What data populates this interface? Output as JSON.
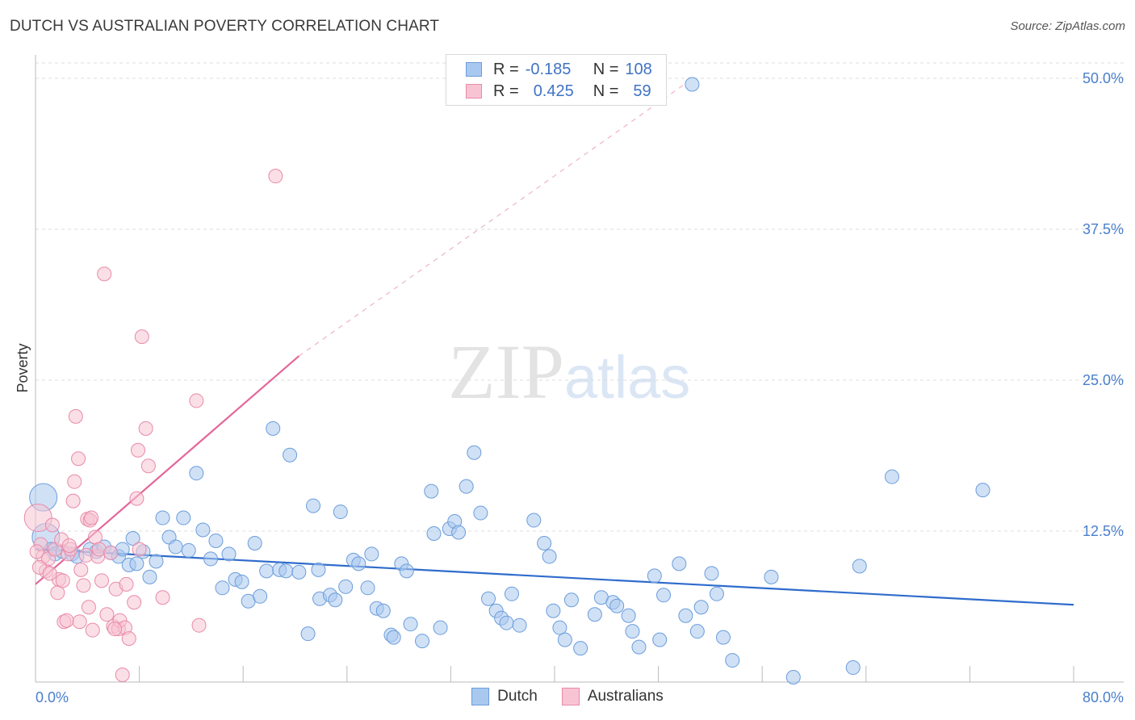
{
  "title": "DUTCH VS AUSTRALIAN POVERTY CORRELATION CHART",
  "source": "Source: ZipAtlas.com",
  "watermark": {
    "zip": "ZIP",
    "atlas": "atlas"
  },
  "legend": {
    "rows": [
      {
        "r_label": "R =",
        "r_value": "-0.185",
        "n_label": "N =",
        "n_value": "108",
        "color": "#a9c8ef",
        "border": "#6b9ddb"
      },
      {
        "r_label": "R =",
        "r_value": "0.425",
        "n_label": "N =",
        "n_value": "59",
        "color": "#f8c4d4",
        "border": "#e88aa8"
      }
    ]
  },
  "bottom_legend": {
    "dutch": "Dutch",
    "australians": "Australians"
  },
  "chart_data": {
    "type": "scatter",
    "title": "DUTCH VS AUSTRALIAN POVERTY CORRELATION CHART",
    "xlabel": "",
    "ylabel": "Poverty",
    "xlim": [
      0,
      80
    ],
    "ylim": [
      0,
      50
    ],
    "x_tick_labels": [
      "0.0%",
      "80.0%"
    ],
    "y_ticks": [
      12.5,
      25.0,
      37.5,
      50.0
    ],
    "y_tick_labels": [
      "12.5%",
      "25.0%",
      "37.5%",
      "50.0%"
    ],
    "grid": true,
    "legend_position": "top-center",
    "series": [
      {
        "name": "Dutch",
        "color": "#6b9ddb",
        "fill": "#a9c8ef",
        "trend": {
          "x": [
            0,
            80
          ],
          "y": [
            11.0,
            6.4
          ]
        },
        "points": [
          [
            0.6,
            15.3
          ],
          [
            0.8,
            12.0
          ],
          [
            1.2,
            11.0
          ],
          [
            1.5,
            10.6
          ],
          [
            2.1,
            10.8
          ],
          [
            2.8,
            10.6
          ],
          [
            3.2,
            10.4
          ],
          [
            4.2,
            11.0
          ],
          [
            4.7,
            10.8
          ],
          [
            5.3,
            11.2
          ],
          [
            5.8,
            10.7
          ],
          [
            6.4,
            10.4
          ],
          [
            6.7,
            11.0
          ],
          [
            7.2,
            9.7
          ],
          [
            7.5,
            11.9
          ],
          [
            7.8,
            9.8
          ],
          [
            8.3,
            10.8
          ],
          [
            8.8,
            8.7
          ],
          [
            9.3,
            10.0
          ],
          [
            9.8,
            13.6
          ],
          [
            10.3,
            12.0
          ],
          [
            10.8,
            11.2
          ],
          [
            11.4,
            13.6
          ],
          [
            11.8,
            10.9
          ],
          [
            12.4,
            17.3
          ],
          [
            12.9,
            12.6
          ],
          [
            13.5,
            10.2
          ],
          [
            13.9,
            11.7
          ],
          [
            14.4,
            7.8
          ],
          [
            14.9,
            10.6
          ],
          [
            15.4,
            8.5
          ],
          [
            15.9,
            8.3
          ],
          [
            16.4,
            6.7
          ],
          [
            16.9,
            11.5
          ],
          [
            17.3,
            7.1
          ],
          [
            17.8,
            9.2
          ],
          [
            18.3,
            21.0
          ],
          [
            18.8,
            9.3
          ],
          [
            19.3,
            9.2
          ],
          [
            19.6,
            18.8
          ],
          [
            20.3,
            9.1
          ],
          [
            21.0,
            4.0
          ],
          [
            21.4,
            14.6
          ],
          [
            21.8,
            9.3
          ],
          [
            21.9,
            6.9
          ],
          [
            22.7,
            7.2
          ],
          [
            23.1,
            6.8
          ],
          [
            23.5,
            14.1
          ],
          [
            23.9,
            7.9
          ],
          [
            24.5,
            10.1
          ],
          [
            24.9,
            9.8
          ],
          [
            25.6,
            7.8
          ],
          [
            25.9,
            10.6
          ],
          [
            26.3,
            6.1
          ],
          [
            26.8,
            5.9
          ],
          [
            27.4,
            3.9
          ],
          [
            27.6,
            3.7
          ],
          [
            28.2,
            9.8
          ],
          [
            28.6,
            9.2
          ],
          [
            28.9,
            4.8
          ],
          [
            29.8,
            3.4
          ],
          [
            30.5,
            15.8
          ],
          [
            30.7,
            12.3
          ],
          [
            31.2,
            4.5
          ],
          [
            31.9,
            12.7
          ],
          [
            32.3,
            13.3
          ],
          [
            32.6,
            12.4
          ],
          [
            33.2,
            16.2
          ],
          [
            33.8,
            19.0
          ],
          [
            34.3,
            14.0
          ],
          [
            34.9,
            6.9
          ],
          [
            35.5,
            5.9
          ],
          [
            35.9,
            5.3
          ],
          [
            36.3,
            4.9
          ],
          [
            36.7,
            7.3
          ],
          [
            37.3,
            4.7
          ],
          [
            38.4,
            13.4
          ],
          [
            39.2,
            11.5
          ],
          [
            39.6,
            10.4
          ],
          [
            39.9,
            5.9
          ],
          [
            40.4,
            4.5
          ],
          [
            40.8,
            3.5
          ],
          [
            41.3,
            6.8
          ],
          [
            42.0,
            2.8
          ],
          [
            43.1,
            5.6
          ],
          [
            43.6,
            7.0
          ],
          [
            44.5,
            6.6
          ],
          [
            44.8,
            6.3
          ],
          [
            45.7,
            5.5
          ],
          [
            46.0,
            4.2
          ],
          [
            46.5,
            2.9
          ],
          [
            47.7,
            8.8
          ],
          [
            48.1,
            3.5
          ],
          [
            48.4,
            7.2
          ],
          [
            49.6,
            9.8
          ],
          [
            50.1,
            5.5
          ],
          [
            51.0,
            4.2
          ],
          [
            51.3,
            6.2
          ],
          [
            52.1,
            9.0
          ],
          [
            52.5,
            7.3
          ],
          [
            53.0,
            3.7
          ],
          [
            53.7,
            1.8
          ],
          [
            56.7,
            8.7
          ],
          [
            58.4,
            0.4
          ],
          [
            63.0,
            1.2
          ],
          [
            63.5,
            9.6
          ],
          [
            66.0,
            17.0
          ],
          [
            73.0,
            15.9
          ],
          [
            50.6,
            49.5
          ]
        ],
        "sizes": {
          "large": [
            [
              0.6,
              15.3
            ],
            [
              0.8,
              12.0
            ]
          ]
        }
      },
      {
        "name": "Australians",
        "color": "#e88aa8",
        "fill": "#f8c4d4",
        "trend": {
          "x": [
            0,
            20.3
          ],
          "y": [
            8.1,
            27.0
          ]
        },
        "trend_extension": {
          "x": [
            20.3,
            50.0
          ],
          "y": [
            27.0,
            49.5
          ]
        },
        "points": [
          [
            0.2,
            13.6
          ],
          [
            0.4,
            11.4
          ],
          [
            0.6,
            10.4
          ],
          [
            0.8,
            9.2
          ],
          [
            1.0,
            10.2
          ],
          [
            1.3,
            13.0
          ],
          [
            1.5,
            11.0
          ],
          [
            1.7,
            7.4
          ],
          [
            1.8,
            8.5
          ],
          [
            2.0,
            11.8
          ],
          [
            2.1,
            8.4
          ],
          [
            2.2,
            5.0
          ],
          [
            2.4,
            5.1
          ],
          [
            2.5,
            10.6
          ],
          [
            2.7,
            11.0
          ],
          [
            2.9,
            15.0
          ],
          [
            3.0,
            16.6
          ],
          [
            3.1,
            22.0
          ],
          [
            3.3,
            18.5
          ],
          [
            3.4,
            5.0
          ],
          [
            3.5,
            9.3
          ],
          [
            3.7,
            8.0
          ],
          [
            3.9,
            10.5
          ],
          [
            4.0,
            13.5
          ],
          [
            4.1,
            6.2
          ],
          [
            4.2,
            13.4
          ],
          [
            4.4,
            4.3
          ],
          [
            4.6,
            12.0
          ],
          [
            4.8,
            10.4
          ],
          [
            4.9,
            11.0
          ],
          [
            5.1,
            8.4
          ],
          [
            5.3,
            33.8
          ],
          [
            5.5,
            5.6
          ],
          [
            5.8,
            10.7
          ],
          [
            6.0,
            4.6
          ],
          [
            6.2,
            7.7
          ],
          [
            6.4,
            4.4
          ],
          [
            6.5,
            5.1
          ],
          [
            6.7,
            0.6
          ],
          [
            6.9,
            4.5
          ],
          [
            7.0,
            8.1
          ],
          [
            7.2,
            3.6
          ],
          [
            7.6,
            6.6
          ],
          [
            7.8,
            15.2
          ],
          [
            7.9,
            19.2
          ],
          [
            8.0,
            11.0
          ],
          [
            8.2,
            28.6
          ],
          [
            8.5,
            21.0
          ],
          [
            8.7,
            17.9
          ],
          [
            9.8,
            7.0
          ],
          [
            12.4,
            23.3
          ],
          [
            12.6,
            4.7
          ],
          [
            18.5,
            41.9
          ],
          [
            0.1,
            10.8
          ],
          [
            0.3,
            9.5
          ],
          [
            1.1,
            9.0
          ],
          [
            2.6,
            11.3
          ],
          [
            6.1,
            4.4
          ],
          [
            4.3,
            13.6
          ]
        ],
        "sizes": {
          "large": [
            [
              0.2,
              13.6
            ]
          ]
        }
      }
    ]
  }
}
